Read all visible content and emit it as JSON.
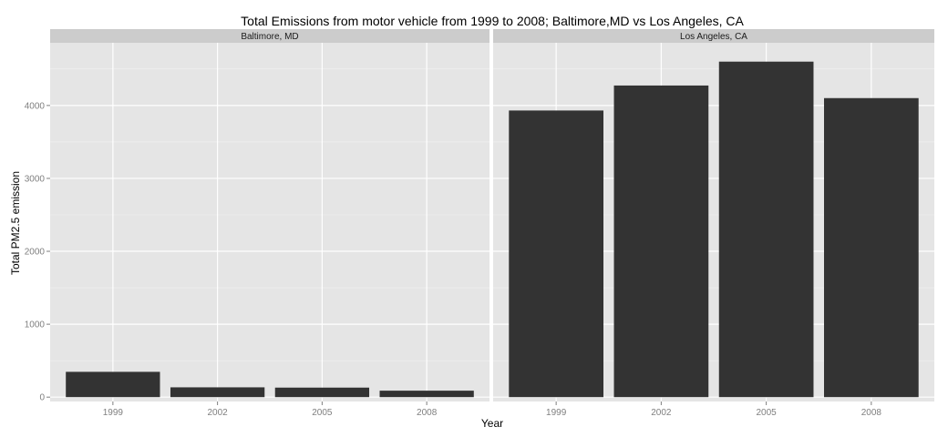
{
  "chart_data": {
    "type": "bar",
    "title": "Total Emissions from motor vehicle from 1999 to 2008; Baltimore,MD vs Los Angeles, CA",
    "xlabel": "Year",
    "ylabel": "Total PM2.5 emission",
    "ylim": [
      -60,
      4860
    ],
    "yticks": [
      0,
      1000,
      2000,
      3000,
      4000
    ],
    "categories": [
      "1999",
      "2002",
      "2005",
      "2008"
    ],
    "grid": true,
    "facets": [
      {
        "name": "Baltimore, MD",
        "values": [
          346.8,
          134.3,
          130.4,
          88.3
        ]
      },
      {
        "name": "Los Angeles, CA",
        "values": [
          3931.1,
          4274.0,
          4601.4,
          4101.3
        ]
      }
    ],
    "colors": {
      "bar": "#333333",
      "panel_bg": "#e5e5e5",
      "grid_major": "#ffffff",
      "grid_minor": "#f2f2f2",
      "strip_bg": "#cccccc"
    }
  }
}
